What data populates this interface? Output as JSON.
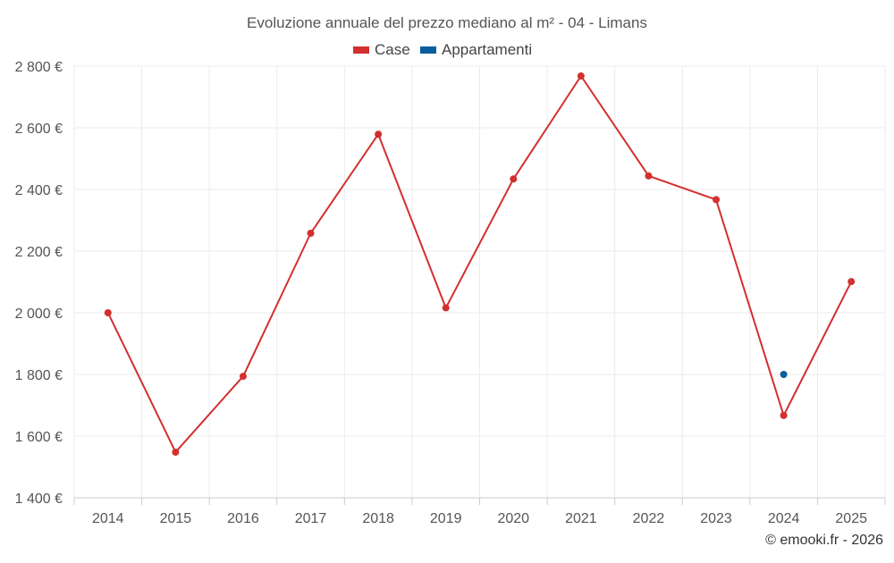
{
  "chart_data": {
    "type": "line",
    "title": "Evoluzione annuale del prezzo mediano al m² - 04 - Limans",
    "categories": [
      "2014",
      "2015",
      "2016",
      "2017",
      "2018",
      "2019",
      "2020",
      "2021",
      "2022",
      "2023",
      "2024",
      "2025"
    ],
    "series": [
      {
        "name": "Case",
        "color": "#d32f2f",
        "values": [
          2000,
          1548,
          1794,
          2258,
          2579,
          2016,
          2434,
          2768,
          2444,
          2367,
          1667,
          2101
        ]
      },
      {
        "name": "Appartamenti",
        "color": "#0b5e9e",
        "values": [
          null,
          null,
          null,
          null,
          null,
          null,
          null,
          null,
          null,
          null,
          1800,
          null
        ]
      }
    ],
    "yticks": [
      1400,
      1600,
      1800,
      2000,
      2200,
      2400,
      2600,
      2800
    ],
    "ytick_labels": [
      "1 400 €",
      "1 600 €",
      "1 800 €",
      "2 000 €",
      "2 200 €",
      "2 400 €",
      "2 600 €",
      "2 800 €"
    ],
    "ylim": [
      1400,
      2800
    ],
    "xlabel": "",
    "ylabel": "",
    "grid": true,
    "legend_position": "top-center"
  },
  "credit": "© emooki.fr - 2026"
}
